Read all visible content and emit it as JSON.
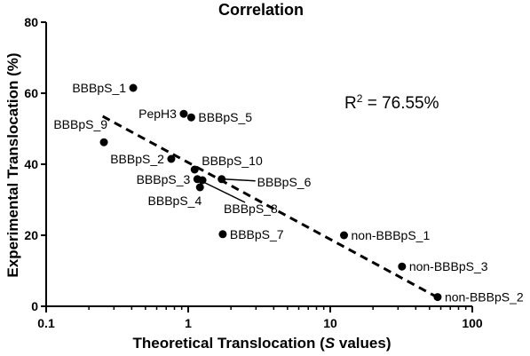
{
  "chart_data": {
    "type": "scatter",
    "title": "Correlation",
    "xlabel_prefix": "Theoretical Translocation (",
    "xlabel_italic": "S",
    "xlabel_suffix": " values)",
    "ylabel": "Experimental Translocation (%)",
    "x_scale": "log",
    "xlim": [
      0.1,
      100
    ],
    "ylim": [
      0,
      80
    ],
    "x_ticks": [
      0.1,
      1,
      10,
      100
    ],
    "x_tick_labels": [
      "0.1",
      "1",
      "10",
      "100"
    ],
    "y_ticks": [
      0,
      20,
      40,
      60,
      80
    ],
    "y_tick_labels": [
      "0",
      "20",
      "40",
      "60",
      "80"
    ],
    "annotation": {
      "r2_prefix": "R",
      "r2_sup": "2",
      "r2_value": " = 76.55%"
    },
    "series": [
      {
        "points": [
          {
            "label": "BBBpS_1",
            "x": 0.41,
            "y": 61.5,
            "label_pos": "left"
          },
          {
            "label": "PepH3",
            "x": 0.93,
            "y": 54.2,
            "label_pos": "left"
          },
          {
            "label": "BBBpS_5",
            "x": 1.05,
            "y": 53.2,
            "label_pos": "right"
          },
          {
            "label": "BBBpS_9",
            "x": 0.255,
            "y": 46.2,
            "label_pos": "above-left"
          },
          {
            "label": "BBBpS_2",
            "x": 0.76,
            "y": 41.5,
            "label_pos": "left"
          },
          {
            "label": "BBBpS_10",
            "x": 1.11,
            "y": 38.5,
            "label_pos": "above-right"
          },
          {
            "label": "BBBpS_3",
            "x": 1.16,
            "y": 35.8,
            "label_pos": "left"
          },
          {
            "label": "BBBpS_6",
            "x": 1.72,
            "y": 35.8,
            "label_pos": "leader-right"
          },
          {
            "label": "BBBpS_4",
            "x": 1.21,
            "y": 33.5,
            "label_pos": "below-left"
          },
          {
            "label": "BBBpS_8",
            "x": 1.26,
            "y": 35.5,
            "label_pos": "leader-below"
          },
          {
            "label": "BBBpS_7",
            "x": 1.75,
            "y": 20.3,
            "label_pos": "right"
          },
          {
            "label": "non-BBBpS_1",
            "x": 12.5,
            "y": 20.0,
            "label_pos": "right"
          },
          {
            "label": "non-BBBpS_3",
            "x": 32.0,
            "y": 11.2,
            "label_pos": "right"
          },
          {
            "label": "non-BBBpS_2",
            "x": 57.0,
            "y": 2.6,
            "label_pos": "right"
          }
        ]
      }
    ],
    "trendline": {
      "style": "dashed",
      "x": [
        0.25,
        57.0
      ],
      "y": [
        53.5,
        2.5
      ]
    },
    "grid": false,
    "legend": "none"
  }
}
